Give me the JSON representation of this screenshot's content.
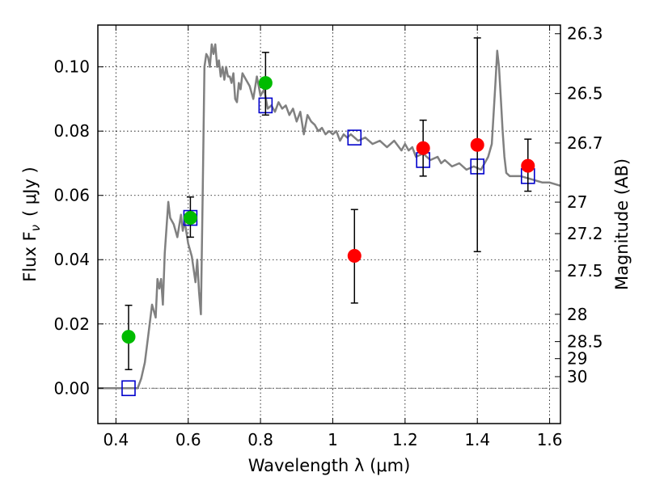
{
  "chart_data": {
    "type": "scatter",
    "xlabel": "Wavelength  λ (μm)",
    "ylabel": "Flux  F",
    "ylabel_sub": "ν",
    "ylabel_unit": "( μJy )",
    "y2label": "Magnitude (AB)",
    "xlim": [
      0.35,
      1.63
    ],
    "ylim": [
      -0.011,
      0.113
    ],
    "grid": true,
    "x_ticks": [
      0.4,
      0.6,
      0.8,
      1.0,
      1.2,
      1.4,
      1.6
    ],
    "x_tick_labels": [
      "0.4",
      "0.6",
      "0.8",
      "1",
      "1.2",
      "1.4",
      "1.6"
    ],
    "y_ticks": [
      0.0,
      0.02,
      0.04,
      0.06,
      0.08,
      0.1
    ],
    "y_tick_labels": [
      "0.00",
      "0.02",
      "0.04",
      "0.06",
      "0.08",
      "0.10"
    ],
    "y2_ticks": [
      {
        "label": "26.3",
        "flux": 0.1103
      },
      {
        "label": "26.5",
        "flux": 0.0917
      },
      {
        "label": "26.7",
        "flux": 0.0763
      },
      {
        "label": "27",
        "flux": 0.0579
      },
      {
        "label": "27.2",
        "flux": 0.0481
      },
      {
        "label": "27.5",
        "flux": 0.0365
      },
      {
        "label": "28",
        "flux": 0.023
      },
      {
        "label": "28.5",
        "flux": 0.0145
      },
      {
        "label": "29",
        "flux": 0.0092
      },
      {
        "label": "30",
        "flux": 0.0036
      }
    ],
    "zero_line": 0.0,
    "series": [
      {
        "kind": "model-spectrum",
        "color": "#808080",
        "x": [
          0.35,
          0.46,
          0.47,
          0.48,
          0.49,
          0.5,
          0.51,
          0.515,
          0.52,
          0.525,
          0.53,
          0.535,
          0.54,
          0.545,
          0.55,
          0.56,
          0.57,
          0.58,
          0.585,
          0.59,
          0.6,
          0.61,
          0.62,
          0.625,
          0.63,
          0.635,
          0.64,
          0.645,
          0.65,
          0.655,
          0.66,
          0.665,
          0.67,
          0.675,
          0.68,
          0.685,
          0.69,
          0.695,
          0.7,
          0.705,
          0.71,
          0.715,
          0.72,
          0.725,
          0.73,
          0.735,
          0.74,
          0.745,
          0.75,
          0.76,
          0.77,
          0.78,
          0.79,
          0.8,
          0.81,
          0.82,
          0.83,
          0.84,
          0.85,
          0.86,
          0.87,
          0.88,
          0.89,
          0.9,
          0.91,
          0.92,
          0.93,
          0.94,
          0.95,
          0.96,
          0.97,
          0.98,
          0.99,
          1.0,
          1.01,
          1.02,
          1.03,
          1.04,
          1.05,
          1.07,
          1.09,
          1.11,
          1.13,
          1.15,
          1.17,
          1.19,
          1.2,
          1.21,
          1.22,
          1.23,
          1.25,
          1.27,
          1.29,
          1.3,
          1.31,
          1.33,
          1.35,
          1.37,
          1.39,
          1.41,
          1.42,
          1.43,
          1.44,
          1.45,
          1.455,
          1.46,
          1.465,
          1.47,
          1.475,
          1.48,
          1.49,
          1.5,
          1.52,
          1.55,
          1.58,
          1.6,
          1.63
        ],
        "y": [
          0.0,
          0.0,
          0.003,
          0.008,
          0.017,
          0.026,
          0.022,
          0.034,
          0.031,
          0.034,
          0.026,
          0.042,
          0.05,
          0.058,
          0.053,
          0.051,
          0.047,
          0.054,
          0.049,
          0.052,
          0.045,
          0.041,
          0.033,
          0.04,
          0.03,
          0.023,
          0.06,
          0.1,
          0.104,
          0.103,
          0.1,
          0.107,
          0.104,
          0.107,
          0.1,
          0.102,
          0.097,
          0.1,
          0.096,
          0.1,
          0.097,
          0.097,
          0.095,
          0.098,
          0.09,
          0.089,
          0.095,
          0.093,
          0.098,
          0.096,
          0.094,
          0.09,
          0.097,
          0.091,
          0.093,
          0.087,
          0.088,
          0.086,
          0.089,
          0.087,
          0.088,
          0.085,
          0.087,
          0.083,
          0.086,
          0.079,
          0.085,
          0.083,
          0.082,
          0.08,
          0.081,
          0.079,
          0.08,
          0.079,
          0.08,
          0.077,
          0.079,
          0.078,
          0.079,
          0.077,
          0.078,
          0.076,
          0.077,
          0.075,
          0.077,
          0.074,
          0.076,
          0.074,
          0.075,
          0.072,
          0.073,
          0.071,
          0.072,
          0.07,
          0.071,
          0.069,
          0.07,
          0.068,
          0.069,
          0.068,
          0.07,
          0.072,
          0.076,
          0.095,
          0.105,
          0.1,
          0.09,
          0.08,
          0.072,
          0.067,
          0.066,
          0.066,
          0.066,
          0.065,
          0.064,
          0.064,
          0.063
        ]
      },
      {
        "kind": "model-photometry",
        "marker": "square",
        "color": "#0000cc",
        "x": [
          0.435,
          0.606,
          0.814,
          1.06,
          1.25,
          1.4,
          1.54
        ],
        "y": [
          0.0,
          0.053,
          0.088,
          0.078,
          0.071,
          0.069,
          0.066
        ]
      },
      {
        "kind": "observed",
        "marker": "circle",
        "color": "#00bb00",
        "x": [
          0.435,
          0.606,
          0.814
        ],
        "y": [
          0.016,
          0.053,
          0.095
        ],
        "yerr_low": [
          0.0058,
          0.047,
          0.085
        ],
        "yerr_high": [
          0.0258,
          0.0595,
          0.1045
        ]
      },
      {
        "kind": "observed",
        "marker": "circle",
        "color": "#ff0000",
        "x": [
          1.06,
          1.25,
          1.4,
          1.54
        ],
        "y": [
          0.0412,
          0.0747,
          0.0757,
          0.0692
        ],
        "yerr_low": [
          0.0265,
          0.066,
          0.0425,
          0.0613
        ],
        "yerr_high": [
          0.0556,
          0.0834,
          0.109,
          0.0775
        ]
      }
    ]
  }
}
